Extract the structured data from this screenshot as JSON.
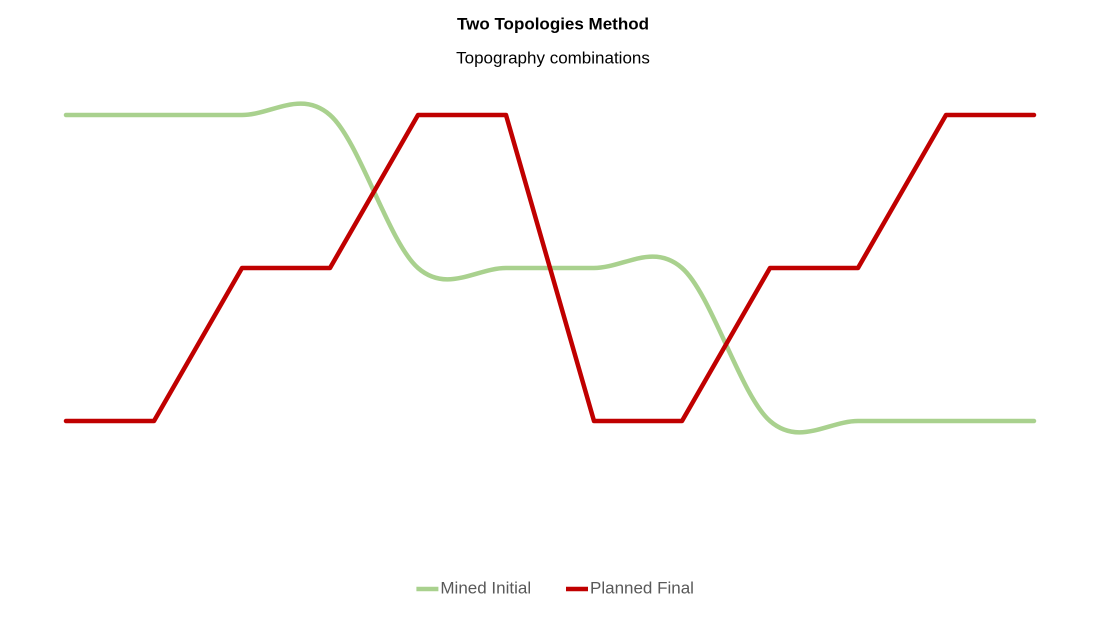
{
  "chart_data": {
    "type": "line",
    "title": "Two Topologies Method",
    "subtitle": "Topography combinations",
    "categories": [
      null,
      null,
      null,
      null,
      null,
      null,
      null,
      null,
      null,
      null,
      null,
      null
    ],
    "series": [
      {
        "name": "Mined Initial",
        "color": "#a9d18e",
        "smooth": true,
        "values": [
          3,
          3,
          3,
          3,
          2,
          2,
          2,
          2,
          1,
          1,
          1,
          1
        ]
      },
      {
        "name": "Planned Final",
        "color": "#c00000",
        "smooth": false,
        "values": [
          1,
          1,
          2,
          2,
          3,
          3,
          1,
          1,
          2,
          2,
          3,
          3
        ]
      }
    ],
    "ylim": [
      0,
      3.5
    ],
    "legend": "bottom"
  }
}
